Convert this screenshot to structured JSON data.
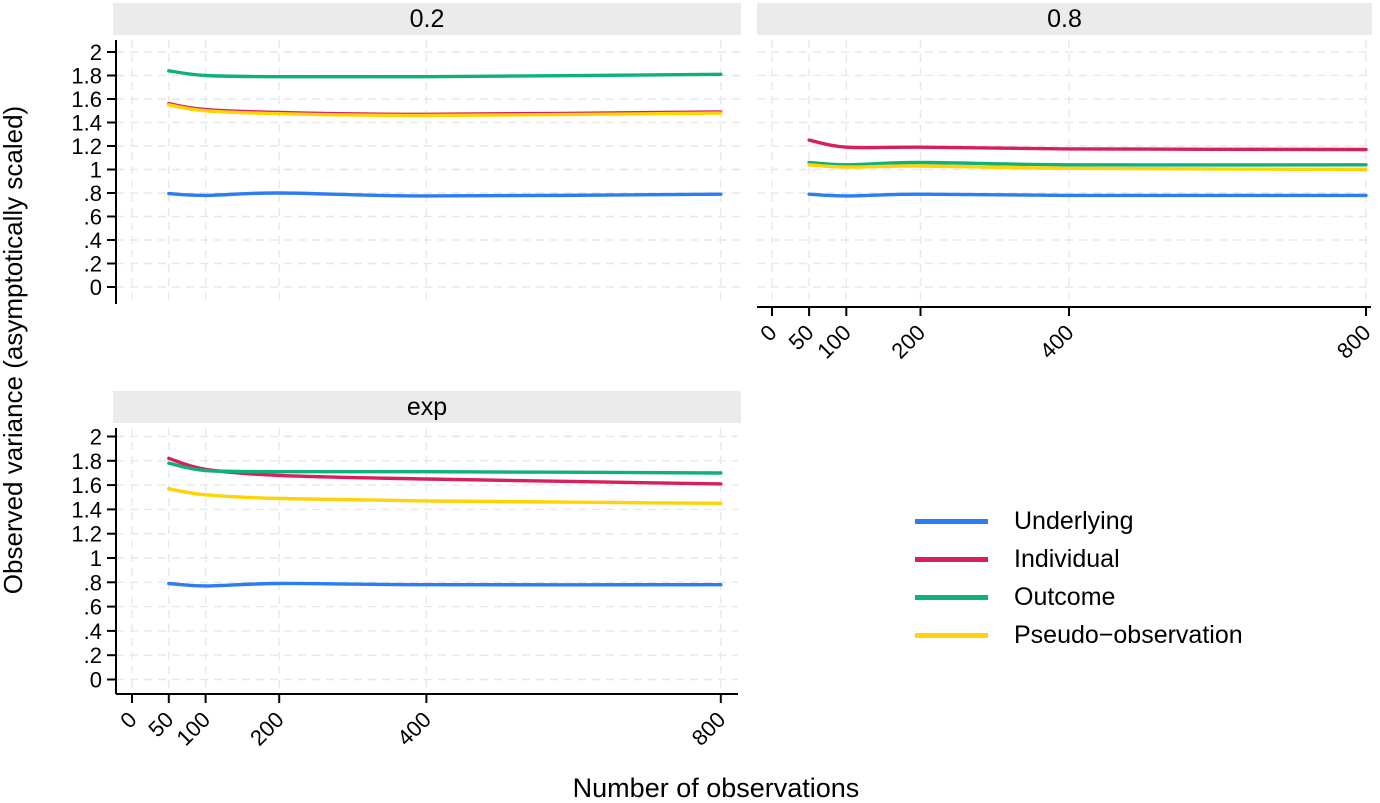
{
  "figure": {
    "x_axis_title": "Number of observations",
    "y_axis_title": "Observed variance (asymptotically scaled)"
  },
  "legend": {
    "position": "bottom-right quadrant",
    "entries": [
      {
        "label": "Underlying",
        "color": "#2e7df0"
      },
      {
        "label": "Individual",
        "color": "#d6205e"
      },
      {
        "label": "Outcome",
        "color": "#0fb176"
      },
      {
        "label": "Pseudo−observation",
        "color": "#ffd306"
      }
    ]
  },
  "style": {
    "header_bg": "#ebebeb",
    "gridline_color": "#e8e8e8",
    "axis_color": "#000000",
    "grid_dash": "8 6",
    "line_width": 3.4
  },
  "chart_data": [
    {
      "type": "line",
      "title": "0.2",
      "grid": true,
      "x": [
        50,
        100,
        200,
        400,
        800
      ],
      "x_ticks": [
        0,
        50,
        100,
        200,
        400,
        800
      ],
      "xlim": [
        0,
        820
      ],
      "ylim": [
        0,
        2
      ],
      "y_tick_values": [
        0,
        0.2,
        0.4,
        0.6,
        0.8,
        1,
        1.2,
        1.4,
        1.6,
        1.8,
        2
      ],
      "y_tick_labels": [
        "0",
        ".2",
        ".4",
        ".6",
        ".8",
        "1",
        "1.2",
        "1.4",
        "1.6",
        "1.8",
        "2"
      ],
      "show_y_axis": true,
      "show_x_axis": false,
      "series": [
        {
          "name": "Underlying",
          "values": [
            0.795,
            0.78,
            0.8,
            0.775,
            0.79
          ]
        },
        {
          "name": "Individual",
          "values": [
            1.56,
            1.51,
            1.485,
            1.47,
            1.49
          ]
        },
        {
          "name": "Outcome",
          "values": [
            1.84,
            1.8,
            1.79,
            1.79,
            1.81
          ]
        },
        {
          "name": "Pseudo−observation",
          "values": [
            1.55,
            1.5,
            1.475,
            1.46,
            1.48
          ]
        }
      ]
    },
    {
      "type": "line",
      "title": "0.8",
      "grid": true,
      "x": [
        50,
        100,
        200,
        400,
        800
      ],
      "x_ticks": [
        0,
        50,
        100,
        200,
        400,
        800
      ],
      "xlim": [
        0,
        820
      ],
      "ylim": [
        0,
        2
      ],
      "y_tick_values": [
        0,
        0.2,
        0.4,
        0.6,
        0.8,
        1,
        1.2,
        1.4,
        1.6,
        1.8,
        2
      ],
      "y_tick_labels": [
        "0",
        ".2",
        ".4",
        ".6",
        ".8",
        "1",
        "1.2",
        "1.4",
        "1.6",
        "1.8",
        "2"
      ],
      "show_y_axis": false,
      "show_x_axis": true,
      "series": [
        {
          "name": "Underlying",
          "values": [
            0.79,
            0.775,
            0.79,
            0.78,
            0.78
          ]
        },
        {
          "name": "Individual",
          "values": [
            1.25,
            1.19,
            1.19,
            1.175,
            1.17
          ]
        },
        {
          "name": "Outcome",
          "values": [
            1.06,
            1.04,
            1.06,
            1.04,
            1.04
          ]
        },
        {
          "name": "Pseudo−observation",
          "values": [
            1.04,
            1.02,
            1.03,
            1.01,
            1.0
          ]
        }
      ]
    },
    {
      "type": "line",
      "title": "exp",
      "grid": true,
      "x": [
        50,
        100,
        200,
        400,
        800
      ],
      "x_ticks": [
        0,
        50,
        100,
        200,
        400,
        800
      ],
      "xlim": [
        0,
        820
      ],
      "ylim": [
        0,
        2
      ],
      "y_tick_values": [
        0,
        0.2,
        0.4,
        0.6,
        0.8,
        1,
        1.2,
        1.4,
        1.6,
        1.8,
        2
      ],
      "y_tick_labels": [
        "0",
        ".2",
        ".4",
        ".6",
        ".8",
        "1",
        "1.2",
        "1.4",
        "1.6",
        "1.8",
        "2"
      ],
      "show_y_axis": true,
      "show_x_axis": true,
      "series": [
        {
          "name": "Underlying",
          "values": [
            0.79,
            0.77,
            0.79,
            0.78,
            0.78
          ]
        },
        {
          "name": "Individual",
          "values": [
            1.82,
            1.73,
            1.68,
            1.65,
            1.61
          ]
        },
        {
          "name": "Outcome",
          "values": [
            1.78,
            1.72,
            1.71,
            1.71,
            1.7
          ]
        },
        {
          "name": "Pseudo−observation",
          "values": [
            1.57,
            1.52,
            1.49,
            1.47,
            1.45
          ]
        }
      ]
    }
  ]
}
